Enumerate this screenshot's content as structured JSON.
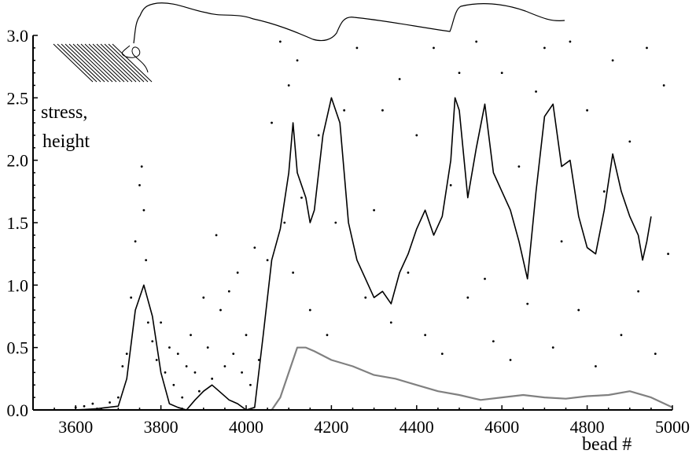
{
  "chart_data": {
    "type": "line",
    "title": "",
    "xlabel": "bead #",
    "ylabel_lines": [
      "stress,",
      "height"
    ],
    "xlim": [
      3500,
      5000
    ],
    "ylim": [
      0,
      3.0
    ],
    "xticks": [
      3600,
      3800,
      4000,
      4200,
      4400,
      4600,
      4800,
      5000
    ],
    "xtick_labels": [
      "3600",
      "3800",
      "4000",
      "4200",
      "4400",
      "4600",
      "4800",
      "5000"
    ],
    "yticks": [
      0.0,
      0.5,
      1.0,
      1.5,
      2.0,
      2.5,
      3.0
    ],
    "ytick_labels": [
      "0.0",
      "0.5",
      "1.0",
      "1.5",
      "2.0",
      "2.5",
      "3.0"
    ],
    "grid": false,
    "legend": "none",
    "series": [
      {
        "style": "line",
        "color": "#000000",
        "x": [
          3500,
          3600,
          3650,
          3700,
          3720,
          3740,
          3760,
          3780,
          3800,
          3820,
          3840,
          3860,
          3880,
          3900,
          3920,
          3940,
          3960,
          3980,
          4000,
          4020,
          4040,
          4060,
          4080,
          4100,
          4110,
          4120,
          4140,
          4150,
          4160,
          4180,
          4200,
          4220,
          4240,
          4260,
          4280,
          4300,
          4320,
          4340,
          4360,
          4380,
          4400,
          4420,
          4440,
          4460,
          4480,
          4490,
          4500,
          4520,
          4540,
          4560,
          4580,
          4600,
          4620,
          4640,
          4660,
          4680,
          4700,
          4720,
          4740,
          4760,
          4780,
          4800,
          4820,
          4840,
          4860,
          4880,
          4900,
          4920,
          4930,
          4940,
          4950
        ],
        "y": [
          0.0,
          0.0,
          0.01,
          0.03,
          0.25,
          0.8,
          1.0,
          0.75,
          0.3,
          0.05,
          0.02,
          0.0,
          0.08,
          0.15,
          0.2,
          0.14,
          0.08,
          0.05,
          0.0,
          0.02,
          0.6,
          1.2,
          1.45,
          1.9,
          2.3,
          1.9,
          1.7,
          1.5,
          1.6,
          2.2,
          2.5,
          2.3,
          1.5,
          1.2,
          1.05,
          0.9,
          0.95,
          0.85,
          1.1,
          1.25,
          1.45,
          1.6,
          1.4,
          1.55,
          2.0,
          2.5,
          2.4,
          1.7,
          2.1,
          2.45,
          1.9,
          1.75,
          1.6,
          1.35,
          1.05,
          1.75,
          2.35,
          2.45,
          1.95,
          2.0,
          1.55,
          1.3,
          1.25,
          1.6,
          2.05,
          1.75,
          1.55,
          1.4,
          1.2,
          1.35,
          1.55
        ]
      },
      {
        "style": "line",
        "color": "#808080",
        "x": [
          3500,
          4000,
          4060,
          4080,
          4100,
          4120,
          4140,
          4160,
          4200,
          4250,
          4300,
          4350,
          4400,
          4450,
          4500,
          4550,
          4600,
          4650,
          4700,
          4750,
          4800,
          4850,
          4900,
          4950,
          5000
        ],
        "y": [
          0.0,
          0.0,
          0.0,
          0.1,
          0.3,
          0.5,
          0.5,
          0.47,
          0.4,
          0.35,
          0.28,
          0.25,
          0.2,
          0.15,
          0.12,
          0.08,
          0.1,
          0.12,
          0.1,
          0.09,
          0.11,
          0.12,
          0.15,
          0.1,
          0.02
        ]
      },
      {
        "style": "scatter",
        "color": "#000000",
        "x": [
          3600,
          3620,
          3640,
          3660,
          3680,
          3700,
          3710,
          3720,
          3730,
          3740,
          3750,
          3755,
          3760,
          3765,
          3770,
          3780,
          3790,
          3800,
          3810,
          3820,
          3830,
          3840,
          3850,
          3860,
          3870,
          3880,
          3890,
          3900,
          3910,
          3920,
          3930,
          3940,
          3950,
          3960,
          3970,
          3980,
          3990,
          4000,
          4010,
          4020,
          4030,
          4050,
          4060,
          4080,
          4090,
          4100,
          4110,
          4120,
          4130,
          4150,
          4170,
          4190,
          4210,
          4230,
          4260,
          4280,
          4300,
          4320,
          4340,
          4360,
          4380,
          4400,
          4420,
          4440,
          4460,
          4480,
          4500,
          4520,
          4540,
          4560,
          4580,
          4600,
          4620,
          4640,
          4660,
          4680,
          4700,
          4720,
          4740,
          4760,
          4780,
          4800,
          4820,
          4840,
          4860,
          4880,
          4900,
          4920,
          4940,
          4960,
          4980,
          4990
        ],
        "y": [
          0.02,
          0.03,
          0.05,
          0.01,
          0.06,
          0.1,
          0.35,
          0.45,
          0.9,
          1.35,
          1.8,
          1.95,
          1.6,
          1.2,
          0.7,
          0.55,
          0.4,
          0.7,
          0.3,
          0.5,
          0.2,
          0.45,
          0.1,
          0.35,
          0.6,
          0.3,
          0.15,
          0.9,
          0.5,
          0.25,
          1.4,
          0.8,
          0.35,
          0.95,
          0.45,
          1.1,
          0.3,
          0.6,
          0.2,
          1.3,
          0.4,
          1.2,
          2.3,
          2.95,
          1.5,
          2.6,
          1.1,
          2.8,
          1.7,
          0.8,
          2.2,
          0.6,
          1.5,
          2.4,
          2.9,
          0.9,
          1.6,
          2.4,
          0.7,
          2.65,
          1.1,
          2.2,
          0.6,
          2.9,
          0.45,
          1.8,
          2.7,
          0.9,
          2.95,
          1.05,
          0.55,
          2.7,
          0.4,
          1.95,
          0.85,
          2.55,
          2.9,
          0.5,
          1.35,
          2.95,
          0.8,
          2.4,
          0.35,
          1.75,
          2.8,
          0.6,
          2.15,
          0.95,
          2.9,
          0.45,
          2.6,
          1.25
        ]
      }
    ]
  }
}
